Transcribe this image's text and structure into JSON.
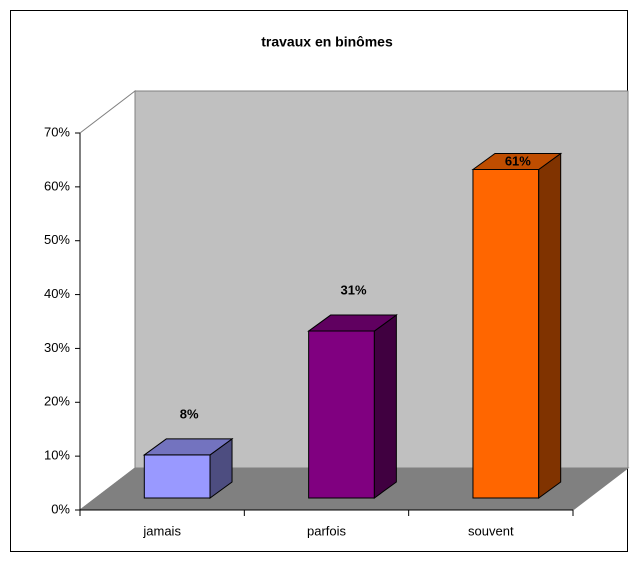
{
  "chart_data": {
    "type": "bar3d",
    "title": "travaux en binômes",
    "categories": [
      "jamais",
      "parfois",
      "souvent"
    ],
    "values": [
      8,
      31,
      61
    ],
    "value_labels": [
      "8%",
      "31%",
      "61%"
    ],
    "colors": [
      "#9999ff",
      "#800080",
      "#ff6600"
    ],
    "ylim": [
      0,
      70
    ],
    "yticks": [
      {
        "value": 0,
        "label": "0%"
      },
      {
        "value": 10,
        "label": "10%"
      },
      {
        "value": 20,
        "label": "20%"
      },
      {
        "value": 30,
        "label": "30%"
      },
      {
        "value": 40,
        "label": "40%"
      },
      {
        "value": 50,
        "label": "50%"
      },
      {
        "value": 60,
        "label": "60%"
      },
      {
        "value": 70,
        "label": "70%"
      }
    ]
  }
}
